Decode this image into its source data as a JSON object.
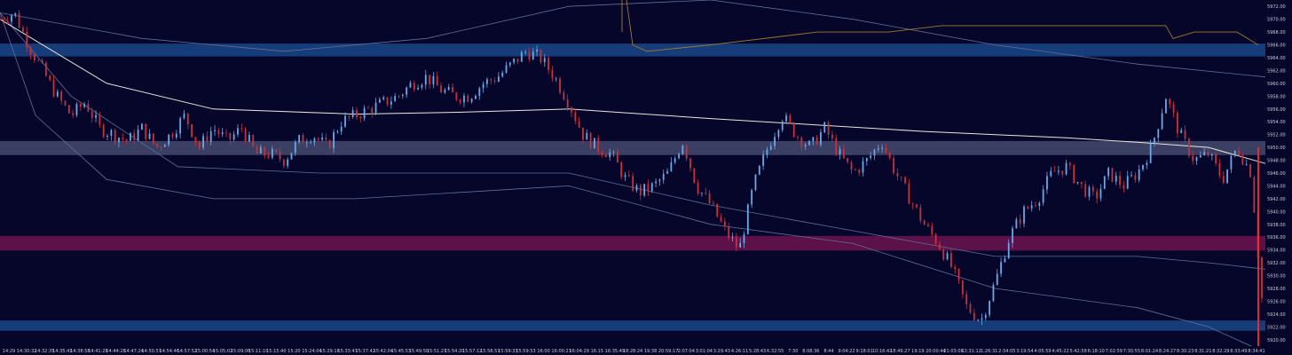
{
  "chart_data": {
    "type": "candlestick",
    "title": "",
    "xlabel": "",
    "ylabel": "",
    "ylim": [
      5919,
      5973
    ],
    "grid": false,
    "colors": {
      "background": "#05062a",
      "up": "#6aa8e8",
      "down": "#c8323c",
      "vwap": "#e9e7d8",
      "bands": "#5f6f9a",
      "volume_profile": "#a07a30",
      "zone_blue": "#163d7a",
      "zone_grey": "#3a3f63",
      "zone_magenta": "#5c1248",
      "last_price_line": "#ff2a2a"
    },
    "zones": [
      {
        "name": "",
        "from": 5964.2,
        "to": 5966.2,
        "color": "zone_blue"
      },
      {
        "name": "",
        "from": 5948.8,
        "to": 5951.0,
        "color": "zone_grey"
      },
      {
        "name": "",
        "from": 5933.9,
        "to": 5936.2,
        "color": "zone_magenta"
      },
      {
        "name": "",
        "from": 5921.4,
        "to": 5923.0,
        "color": "zone_blue"
      }
    ],
    "y_ticks": [
      "5972.00",
      "5970.00",
      "5968.00",
      "5966.00",
      "5964.00",
      "5962.00",
      "5960.00",
      "5958.00",
      "5956.00",
      "5954.00",
      "5952.00",
      "5950.00",
      "5948.00",
      "5946.00",
      "5944.00",
      "5942.00",
      "5940.00",
      "5938.00",
      "5936.00",
      "5934.00",
      "5932.00",
      "5930.00",
      "5928.00",
      "5926.00",
      "5924.00",
      "5922.00",
      "5920.00"
    ],
    "x_ticks": [
      "14:29",
      "14:30:32",
      "14:32:35",
      "14:35:41",
      "14:38:58",
      "14:41:28",
      "14:44:26",
      "14:47:24",
      "14:50:51",
      "14:54:46",
      "14:57:52",
      "15:00:54",
      "15:05:02",
      "15:09:06",
      "15:11:10",
      "15:15:40",
      "15:20",
      "15:24:04",
      "15:29:16",
      "15:33:47",
      "15:37:42",
      "15:42:04",
      "15:45:53",
      "15:49:50",
      "15:51:21",
      "15:54:20",
      "15:57:12",
      "15:58:57",
      "15:59:33",
      "15:59:53",
      "16:00",
      "16:00:21",
      "16:04:29",
      "16:15",
      "16:35:49",
      "18:28:24",
      "19:38",
      "20:59:17",
      "2:07:04",
      "3:01:04",
      "3:29:43",
      "4:26:11",
      "5:28:43",
      "6:32:55",
      "7:30",
      "8:08:36",
      "8:44",
      "9:04:22",
      "9:18:01",
      "10:16:42",
      "18:49:27",
      "19:19",
      "20:00:44",
      "21:03:06",
      "22:31:12",
      "1:26:31",
      "2:34:05",
      "3:19:54",
      "4:05:59",
      "4:45:22",
      "5:42:58",
      "6:18:10",
      "7:02:59",
      "7:30:55",
      "8:01:24",
      "8:24:27",
      "8:30:23",
      "8:31:21",
      "8:32:29",
      "8:33:49",
      "8:34:41"
    ],
    "path_points": [
      [
        0,
        5970
      ],
      [
        4,
        5971
      ],
      [
        8,
        5966
      ],
      [
        12,
        5962
      ],
      [
        16,
        5958
      ],
      [
        20,
        5955
      ],
      [
        24,
        5957
      ],
      [
        28,
        5953
      ],
      [
        32,
        5952
      ],
      [
        36,
        5951
      ],
      [
        40,
        5953
      ],
      [
        44,
        5950
      ],
      [
        48,
        5952
      ],
      [
        52,
        5955
      ],
      [
        56,
        5950
      ],
      [
        60,
        5953
      ],
      [
        64,
        5951
      ],
      [
        68,
        5953
      ],
      [
        72,
        5949
      ],
      [
        76,
        5949
      ],
      [
        80,
        5948
      ],
      [
        84,
        5951
      ],
      [
        88,
        5952
      ],
      [
        92,
        5950
      ],
      [
        96,
        5954
      ],
      [
        100,
        5955
      ],
      [
        104,
        5956
      ],
      [
        108,
        5957
      ],
      [
        112,
        5958
      ],
      [
        116,
        5960
      ],
      [
        120,
        5961
      ],
      [
        124,
        5959
      ],
      [
        128,
        5958
      ],
      [
        132,
        5958
      ],
      [
        136,
        5960
      ],
      [
        140,
        5961
      ],
      [
        144,
        5963
      ],
      [
        148,
        5965
      ],
      [
        152,
        5964
      ],
      [
        156,
        5961
      ],
      [
        160,
        5957
      ],
      [
        164,
        5952
      ],
      [
        168,
        5950
      ],
      [
        172,
        5949
      ],
      [
        176,
        5945
      ],
      [
        180,
        5943
      ],
      [
        184,
        5944
      ],
      [
        188,
        5946
      ],
      [
        192,
        5951
      ],
      [
        196,
        5944
      ],
      [
        200,
        5941
      ],
      [
        204,
        5937
      ],
      [
        208,
        5934
      ],
      [
        212,
        5944
      ],
      [
        216,
        5950
      ],
      [
        220,
        5955
      ],
      [
        224,
        5952
      ],
      [
        228,
        5950
      ],
      [
        232,
        5953
      ],
      [
        236,
        5949
      ],
      [
        240,
        5946
      ],
      [
        244,
        5948
      ],
      [
        248,
        5951
      ],
      [
        252,
        5946
      ],
      [
        256,
        5942
      ],
      [
        260,
        5938
      ],
      [
        264,
        5935
      ],
      [
        268,
        5931
      ],
      [
        272,
        5925
      ],
      [
        276,
        5923
      ],
      [
        280,
        5929
      ],
      [
        284,
        5936
      ],
      [
        288,
        5940
      ],
      [
        292,
        5942
      ],
      [
        296,
        5946
      ],
      [
        300,
        5947
      ],
      [
        304,
        5944
      ],
      [
        308,
        5942
      ],
      [
        312,
        5946
      ],
      [
        316,
        5944
      ],
      [
        320,
        5946
      ],
      [
        324,
        5950
      ],
      [
        328,
        5958
      ],
      [
        332,
        5952
      ],
      [
        336,
        5948
      ],
      [
        340,
        5949
      ],
      [
        344,
        5945
      ],
      [
        348,
        5950
      ],
      [
        352,
        5946
      ],
      [
        356,
        5920
      ]
    ],
    "vwap_points": [
      [
        0,
        5970
      ],
      [
        30,
        5960
      ],
      [
        60,
        5956
      ],
      [
        100,
        5955.2
      ],
      [
        130,
        5955.5
      ],
      [
        160,
        5956
      ],
      [
        200,
        5954.5
      ],
      [
        260,
        5952.5
      ],
      [
        300,
        5951.5
      ],
      [
        320,
        5950.8
      ],
      [
        340,
        5950
      ],
      [
        356,
        5947.5
      ]
    ],
    "upper_band_points": [
      [
        0,
        5971
      ],
      [
        40,
        5967
      ],
      [
        80,
        5965
      ],
      [
        120,
        5967
      ],
      [
        160,
        5972
      ],
      [
        200,
        5973
      ],
      [
        240,
        5970
      ],
      [
        280,
        5966
      ],
      [
        320,
        5963
      ],
      [
        356,
        5961
      ]
    ],
    "lower_band_points": [
      [
        0,
        5971
      ],
      [
        10,
        5955
      ],
      [
        30,
        5945
      ],
      [
        60,
        5942
      ],
      [
        100,
        5942
      ],
      [
        130,
        5943
      ],
      [
        160,
        5944
      ],
      [
        200,
        5938
      ],
      [
        240,
        5935
      ],
      [
        280,
        5928
      ],
      [
        320,
        5925
      ],
      [
        340,
        5922
      ],
      [
        356,
        5918
      ]
    ],
    "lower_band2_points": [
      [
        0,
        5971
      ],
      [
        20,
        5958
      ],
      [
        50,
        5947
      ],
      [
        90,
        5946
      ],
      [
        130,
        5946
      ],
      [
        160,
        5946
      ],
      [
        200,
        5941
      ],
      [
        240,
        5937
      ],
      [
        280,
        5933
      ],
      [
        320,
        5933
      ],
      [
        340,
        5932
      ],
      [
        356,
        5931
      ]
    ],
    "profile_points": [
      [
        175,
        5978
      ],
      [
        178,
        5966
      ],
      [
        182,
        5965
      ],
      [
        200,
        5966
      ],
      [
        230,
        5968
      ],
      [
        250,
        5968
      ],
      [
        265,
        5969
      ],
      [
        300,
        5969
      ],
      [
        328,
        5969
      ],
      [
        330,
        5967
      ],
      [
        336,
        5968
      ],
      [
        348,
        5968
      ],
      [
        354,
        5966
      ]
    ],
    "profile_vline_x": 175
  }
}
